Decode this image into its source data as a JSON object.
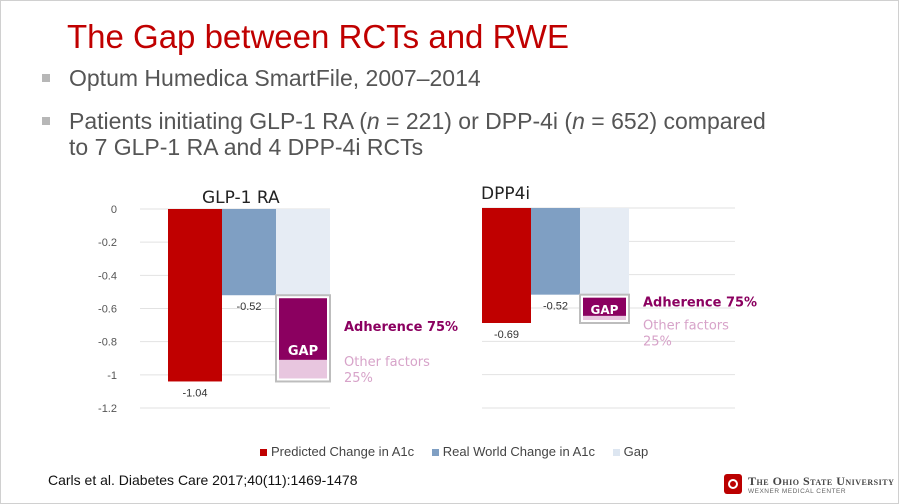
{
  "title": "The Gap between RCTs and RWE",
  "bullets": [
    {
      "text": "Optum Humedica SmartFile, 2007–2014"
    },
    {
      "pre": "Patients initiating GLP-1 RA (",
      "n1": "n",
      "mid": " = 221) or DPP-4i (",
      "n2": "n",
      "post": " = 652) compared to 7 GLP-1 RA and 4 DPP-4i RCTs"
    }
  ],
  "chart_data": [
    {
      "type": "bar",
      "title": "GLP-1 RA",
      "yticks": [
        "0",
        "-0.2",
        "-0.4",
        "-0.6",
        "-0.8",
        "-1",
        "-1.2"
      ],
      "ylim": [
        -1.2,
        0
      ],
      "series": [
        {
          "name": "Predicted Change in A1c",
          "value": -1.04,
          "label": "-1.04"
        },
        {
          "name": "Real World Change in A1c",
          "value": -0.52,
          "label": "-0.52"
        },
        {
          "name": "Gap",
          "value": -1.04
        }
      ],
      "gap": {
        "start": -0.52,
        "end": -1.04,
        "adherence_share": 0.75,
        "other_share": 0.25
      },
      "annotations": {
        "gap_label": "GAP",
        "adherence": "Adherence 75%",
        "other_line1": "Other factors",
        "other_line2": "25%"
      }
    },
    {
      "type": "bar",
      "title": "DPP4i",
      "ylim": [
        -1.2,
        0
      ],
      "series": [
        {
          "name": "Predicted Change in A1c",
          "value": -0.69,
          "label": "-0.69"
        },
        {
          "name": "Real World Change in A1c",
          "value": -0.52,
          "label": "-0.52"
        },
        {
          "name": "Gap",
          "value": -0.69
        }
      ],
      "gap": {
        "start": -0.52,
        "end": -0.69,
        "adherence_share": 0.75,
        "other_share": 0.25
      },
      "annotations": {
        "gap_label": "GAP",
        "adherence": "Adherence 75%",
        "other_line1": "Other factors",
        "other_line2": "25%"
      }
    }
  ],
  "legend": [
    {
      "name": "Predicted Change in A1c",
      "color": "#c00000"
    },
    {
      "name": "Real World Change in A1c",
      "color": "#7f9fc3"
    },
    {
      "name": "Gap",
      "color": "#dde6f1"
    }
  ],
  "colors": {
    "predicted": "#c00000",
    "real": "#7f9fc3",
    "gap": "#e6ecf4",
    "adherence": "#8b0060",
    "other": "#e8c6df",
    "adherence_text": "#8b0060",
    "other_text": "#d7a3c9"
  },
  "citation": "Carls et al. Diabetes Care 2017;40(11):1469-1478",
  "logo": {
    "line1": "The Ohio State University",
    "line2": "WEXNER MEDICAL CENTER"
  }
}
